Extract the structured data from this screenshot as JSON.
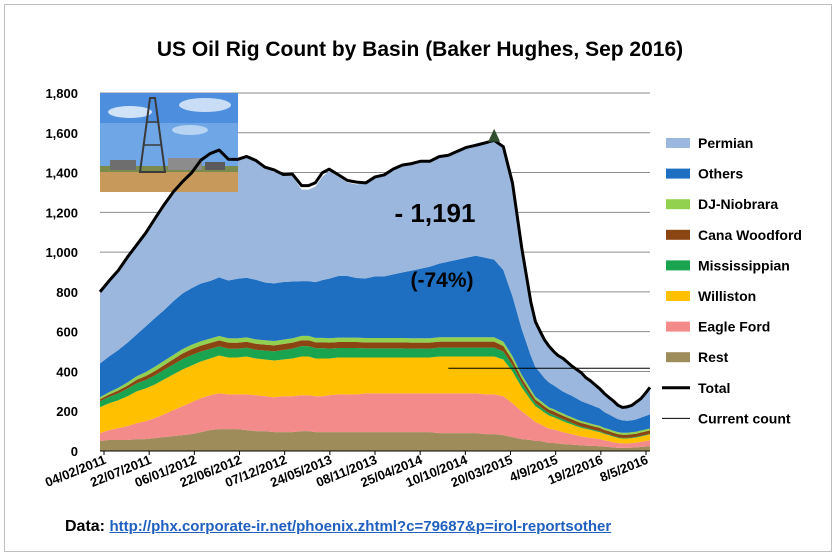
{
  "chart_data": {
    "type": "area",
    "title": "US Oil Rig Count by Basin (Baker Hughes, Sep 2016)",
    "xlabel": "",
    "ylabel": "",
    "ylim": [
      0,
      1800
    ],
    "yticks": [
      0,
      200,
      400,
      600,
      800,
      1000,
      1200,
      1400,
      1600,
      1800
    ],
    "ytick_labels": [
      "0",
      "200",
      "400",
      "600",
      "800",
      "1,000",
      "1,200",
      "1,400",
      "1,600",
      "1,800"
    ],
    "xtick_labels": [
      "04/02/2011",
      "22/07/2011",
      "06/01/2012",
      "22/06/2012",
      "07/12/2012",
      "24/05/2013",
      "08/11/2013",
      "25/04/2014",
      "10/10/2014",
      "20/03/2015",
      "4/9/2015",
      "19/2/2016",
      "8/5/2016"
    ],
    "x": [
      0,
      4,
      8,
      12,
      16,
      20,
      24,
      28,
      32,
      36,
      40,
      44,
      48,
      52,
      56,
      60,
      64,
      68,
      72,
      76,
      80,
      84,
      88,
      91,
      94,
      97,
      100,
      104,
      108,
      112,
      116,
      120,
      124,
      128,
      132,
      136,
      140,
      144,
      148,
      152,
      156,
      160,
      164,
      168,
      172,
      176,
      180,
      184,
      188,
      190,
      192,
      194,
      196,
      198,
      200,
      202,
      204,
      206,
      208,
      210,
      212,
      214,
      216,
      218,
      220,
      222,
      224,
      226,
      228,
      230,
      232,
      234,
      236,
      238,
      240
    ],
    "series": [
      {
        "name": "Rest",
        "values": [
          50,
          55,
          55,
          55,
          60,
          60,
          65,
          70,
          75,
          80,
          85,
          95,
          105,
          110,
          110,
          110,
          105,
          100,
          100,
          95,
          95,
          95,
          100,
          100,
          95,
          95,
          95,
          95,
          95,
          95,
          95,
          95,
          95,
          95,
          95,
          95,
          95,
          95,
          90,
          90,
          90,
          90,
          90,
          85,
          85,
          80,
          70,
          60,
          55,
          50,
          50,
          45,
          40,
          40,
          38,
          35,
          33,
          32,
          30,
          28,
          27,
          26,
          25,
          24,
          22,
          20,
          18,
          16,
          16,
          16,
          17,
          18,
          20,
          22,
          24
        ]
      },
      {
        "name": "Eagle Ford",
        "values": [
          40,
          50,
          60,
          70,
          80,
          90,
          100,
          115,
          130,
          145,
          160,
          170,
          175,
          180,
          175,
          175,
          180,
          180,
          175,
          175,
          180,
          180,
          180,
          180,
          180,
          180,
          185,
          190,
          190,
          190,
          195,
          195,
          195,
          195,
          195,
          195,
          195,
          195,
          200,
          200,
          200,
          200,
          200,
          200,
          200,
          195,
          170,
          140,
          110,
          95,
          85,
          78,
          72,
          68,
          64,
          60,
          56,
          52,
          48,
          45,
          42,
          40,
          38,
          36,
          32,
          30,
          26,
          24,
          22,
          22,
          23,
          24,
          26,
          28,
          30
        ]
      },
      {
        "name": "Williston",
        "values": [
          130,
          135,
          140,
          150,
          160,
          165,
          170,
          175,
          180,
          185,
          185,
          185,
          185,
          190,
          185,
          185,
          190,
          185,
          185,
          185,
          185,
          190,
          195,
          195,
          190,
          190,
          185,
          185,
          185,
          185,
          180,
          180,
          180,
          180,
          180,
          180,
          180,
          180,
          185,
          185,
          185,
          185,
          185,
          190,
          190,
          185,
          160,
          120,
          90,
          80,
          75,
          70,
          66,
          62,
          58,
          55,
          52,
          49,
          46,
          44,
          42,
          40,
          37,
          35,
          32,
          30,
          28,
          26,
          25,
          25,
          25,
          26,
          27,
          28,
          30
        ]
      },
      {
        "name": "Mississippian",
        "values": [
          30,
          32,
          35,
          38,
          40,
          42,
          45,
          48,
          50,
          52,
          52,
          50,
          48,
          46,
          45,
          44,
          44,
          44,
          45,
          46,
          48,
          50,
          52,
          52,
          52,
          52,
          50,
          48,
          48,
          48,
          46,
          46,
          46,
          46,
          46,
          45,
          45,
          45,
          45,
          45,
          45,
          45,
          45,
          45,
          45,
          40,
          32,
          24,
          18,
          15,
          14,
          13,
          12,
          11,
          10,
          10,
          9,
          8,
          7,
          6,
          6,
          5,
          5,
          5,
          4,
          4,
          4,
          3,
          3,
          3,
          3,
          3,
          3,
          3,
          3
        ]
      },
      {
        "name": "Cana Woodford",
        "values": [
          10,
          12,
          14,
          16,
          18,
          20,
          22,
          24,
          26,
          28,
          30,
          30,
          30,
          30,
          30,
          30,
          30,
          30,
          30,
          30,
          30,
          30,
          30,
          30,
          30,
          30,
          30,
          30,
          30,
          30,
          30,
          30,
          30,
          30,
          30,
          30,
          30,
          30,
          30,
          30,
          30,
          30,
          30,
          30,
          30,
          28,
          25,
          22,
          20,
          18,
          18,
          18,
          18,
          18,
          18,
          18,
          18,
          18,
          18,
          18,
          18,
          17,
          17,
          17,
          16,
          16,
          16,
          16,
          16,
          16,
          16,
          16,
          17,
          17,
          17
        ]
      },
      {
        "name": "DJ-Niobrara",
        "values": [
          10,
          12,
          14,
          16,
          18,
          20,
          22,
          22,
          22,
          22,
          22,
          22,
          22,
          22,
          22,
          22,
          22,
          22,
          22,
          22,
          22,
          22,
          22,
          22,
          22,
          22,
          22,
          22,
          22,
          22,
          22,
          22,
          22,
          22,
          22,
          22,
          22,
          22,
          22,
          22,
          22,
          22,
          22,
          22,
          22,
          22,
          20,
          18,
          16,
          14,
          13,
          12,
          11,
          11,
          11,
          11,
          10,
          10,
          10,
          10,
          10,
          10,
          10,
          10,
          10,
          10,
          10,
          10,
          10,
          10,
          10,
          10,
          10,
          10,
          10
        ]
      },
      {
        "name": "Others",
        "values": [
          170,
          180,
          190,
          200,
          210,
          230,
          245,
          255,
          270,
          280,
          285,
          290,
          290,
          295,
          290,
          300,
          300,
          300,
          290,
          290,
          290,
          285,
          275,
          275,
          280,
          290,
          300,
          310,
          310,
          300,
          300,
          310,
          310,
          320,
          330,
          340,
          350,
          360,
          370,
          380,
          390,
          400,
          410,
          400,
          390,
          360,
          300,
          230,
          170,
          150,
          140,
          130,
          125,
          120,
          115,
          110,
          110,
          108,
          105,
          100,
          97,
          95,
          92,
          88,
          80,
          75,
          70,
          65,
          62,
          60,
          60,
          62,
          65,
          68,
          70
        ]
      },
      {
        "name": "Permian",
        "values": [
          360,
          380,
          400,
          430,
          450,
          470,
          500,
          530,
          550,
          560,
          580,
          620,
          640,
          640,
          610,
          600,
          610,
          600,
          580,
          560,
          540,
          530,
          460,
          460,
          480,
          520,
          540,
          500,
          470,
          470,
          480,
          500,
          510,
          530,
          540,
          540,
          540,
          530,
          530,
          530,
          540,
          555,
          565,
          585,
          600,
          620,
          570,
          410,
          270,
          228,
          208,
          192,
          182,
          170,
          165,
          162,
          158,
          149,
          146,
          143,
          127,
          120,
          109,
          99,
          94,
          85,
          80,
          70,
          65,
          70,
          75,
          85,
          95,
          110,
          126
        ]
      }
    ],
    "total": [
      800,
      856,
      908,
      975,
      1036,
      1097,
      1169,
      1239,
      1303,
      1354,
      1399,
      1462,
      1495,
      1513,
      1467,
      1466,
      1481,
      1461,
      1427,
      1413,
      1390,
      1392,
      1334,
      1334,
      1349,
      1399,
      1417,
      1389,
      1360,
      1352,
      1348,
      1378,
      1388,
      1418,
      1438,
      1445,
      1457,
      1457,
      1480,
      1487,
      1507,
      1527,
      1537,
      1549,
      1562,
      1530,
      1347,
      1024,
      749,
      650,
      603,
      558,
      526,
      500,
      479,
      466,
      446,
      426,
      410,
      394,
      369,
      353,
      333,
      314,
      290,
      270,
      252,
      230,
      219,
      222,
      229,
      246,
      263,
      290,
      320
    ],
    "peak_marker": {
      "x": 172,
      "y": 1600
    },
    "current_count": {
      "value": 416,
      "x_start": 152,
      "x_end": 240
    },
    "legend": {
      "position": "right",
      "entries": [
        "Permian",
        "Others",
        "DJ-Niobrara",
        "Cana Woodford",
        "Mississippian",
        "Williston",
        "Eagle Ford",
        "Rest",
        "Total",
        "Current count"
      ]
    },
    "annotations": [
      "- 1,191",
      "(-74%)"
    ],
    "grid": true
  },
  "source": {
    "label": "Data:",
    "url": "http://phx.corporate-ir.net/phoenix.zhtml?c=79687&p=irol-reportsother"
  },
  "colors": {
    "Permian": "#9bb7dd",
    "Others": "#1e6fc1",
    "DJ-Niobrara": "#92d050",
    "Cana Woodford": "#8b4513",
    "Mississippian": "#1aa44f",
    "Williston": "#ffc000",
    "Eagle Ford": "#f48b8b",
    "Rest": "#9e8c5a",
    "Total": "#000000",
    "Current count": "#000000"
  }
}
